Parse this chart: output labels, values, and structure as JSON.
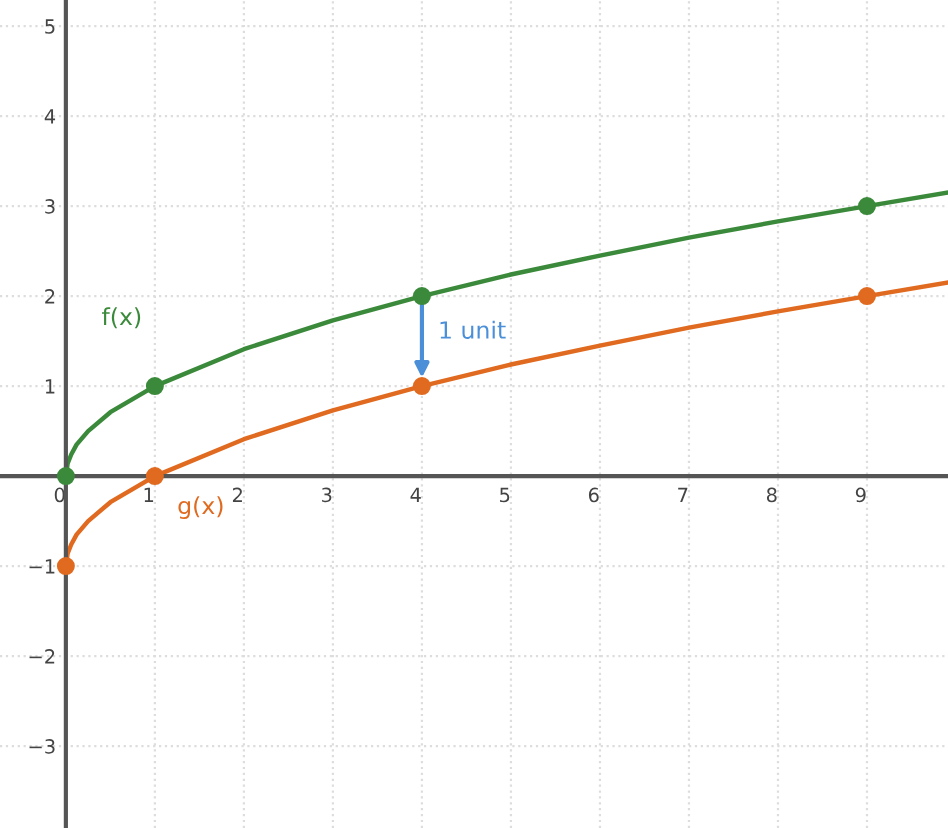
{
  "chart_data": {
    "type": "line",
    "xlim": [
      -0.74,
      9.91
    ],
    "ylim": [
      -3.91,
      5.29
    ],
    "xticks": [
      0,
      1,
      2,
      3,
      4,
      5,
      6,
      7,
      8,
      9
    ],
    "yticks": [
      {
        "value": -3,
        "label": "−3"
      },
      {
        "value": -2,
        "label": "−2"
      },
      {
        "value": -1,
        "label": "−1"
      },
      1,
      2,
      3,
      4,
      5
    ],
    "grid": true,
    "series": [
      {
        "name": "f(x)",
        "color": "#3b8a3b",
        "x": [
          0,
          0.02,
          0.06,
          0.12,
          0.25,
          0.5,
          1,
          2,
          3,
          4,
          5,
          6,
          7,
          8,
          9,
          9.91
        ],
        "values": [
          0,
          0.14,
          0.24,
          0.35,
          0.5,
          0.71,
          1,
          1.41,
          1.73,
          2,
          2.24,
          2.45,
          2.65,
          2.83,
          3,
          3.15
        ]
      },
      {
        "name": "g(x)",
        "color": "#e06a1f",
        "x": [
          0,
          0.02,
          0.06,
          0.12,
          0.25,
          0.5,
          1,
          2,
          3,
          4,
          5,
          6,
          7,
          8,
          9,
          9.91
        ],
        "values": [
          -1,
          -0.86,
          -0.76,
          -0.65,
          -0.5,
          -0.29,
          0,
          0.41,
          0.73,
          1,
          1.24,
          1.45,
          1.65,
          1.83,
          2,
          2.15
        ]
      },
      {
        "type": "scatter",
        "marker": "circle",
        "color": "#3b8a3b",
        "x": [
          0,
          1,
          4,
          9
        ],
        "values": [
          0,
          1,
          2,
          3
        ]
      },
      {
        "type": "scatter",
        "marker": "circle",
        "color": "#e06a1f",
        "x": [
          0,
          1,
          4,
          9
        ],
        "values": [
          -1,
          0,
          1,
          2
        ]
      }
    ],
    "annotations": [
      {
        "text": "1 unit",
        "x": 4,
        "y": 1
      }
    ]
  }
}
